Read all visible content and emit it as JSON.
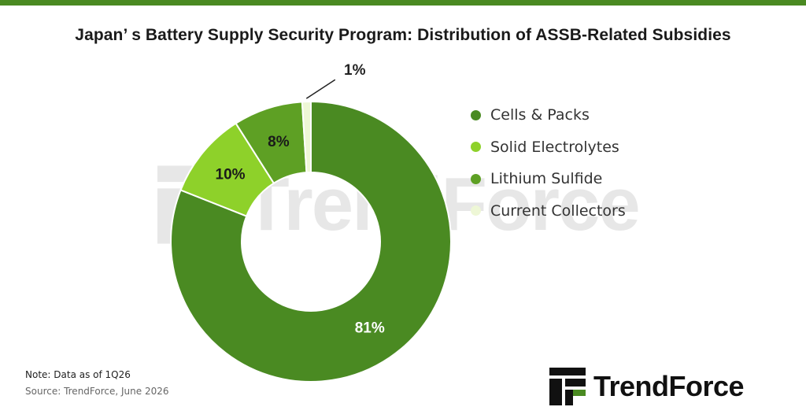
{
  "title": "Japan’ s Battery Supply Security Program: Distribution of ASSB-Related Subsidies",
  "note": "Note: Data as of 1Q26",
  "source": "Source: TrendForce, June  2026",
  "brand": {
    "name": "TrendForce"
  },
  "watermark": {
    "text": "TrendForce"
  },
  "colors": {
    "accent": "#4a8a22"
  },
  "chart_data": {
    "type": "pie",
    "donut": true,
    "title": "Japan’ s Battery Supply Security Program: Distribution of ASSB-Related Subsidies",
    "categories": [
      "Cells & Packs",
      "Solid Electrolytes",
      "Lithium Sulfide",
      "Current Collectors"
    ],
    "values": [
      81,
      10,
      8,
      1
    ],
    "labels": [
      "81%",
      "10%",
      "8%",
      "1%"
    ],
    "colors": [
      "#4a8a22",
      "#8ed12a",
      "#5ea024",
      "#eef7d6"
    ],
    "legend_position": "right"
  }
}
